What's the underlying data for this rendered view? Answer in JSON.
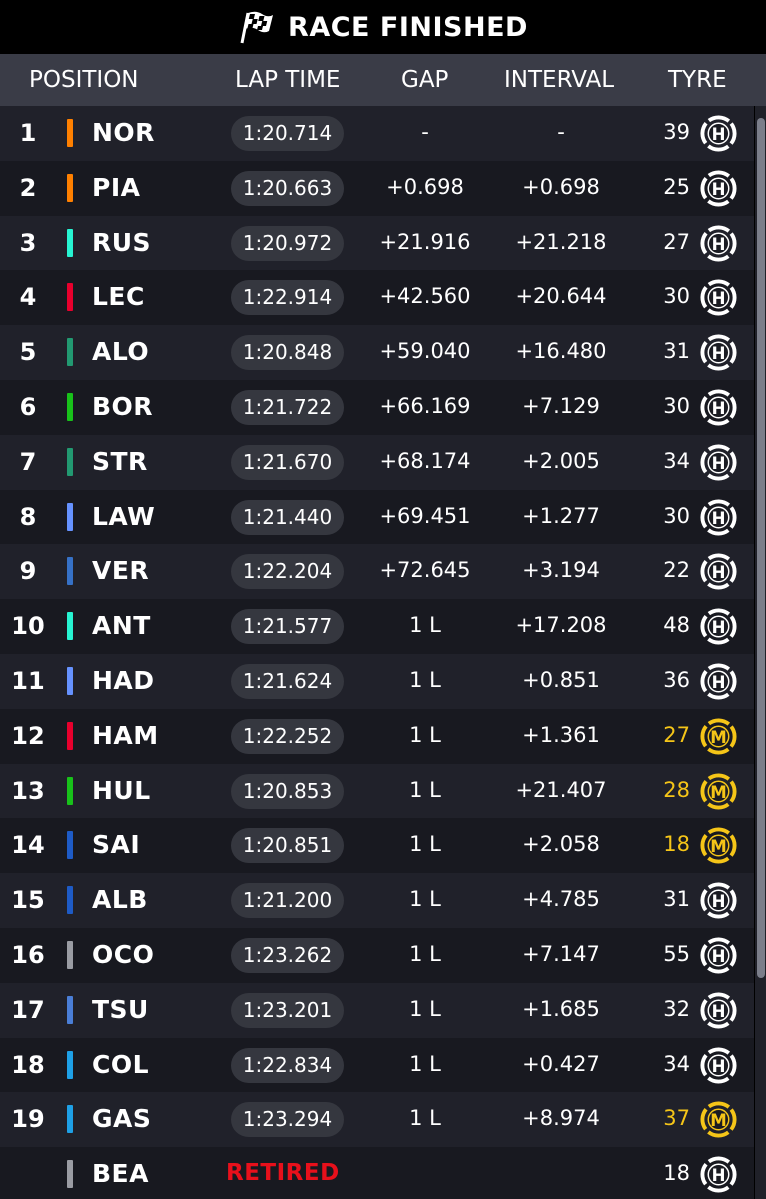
{
  "header": {
    "title": "RACE FINISHED"
  },
  "columns": {
    "position": "POSITION",
    "lap_time": "LAP TIME",
    "gap": "GAP",
    "interval": "INTERVAL",
    "tyre": "TYRE"
  },
  "rows": [
    {
      "pos": "1",
      "driver": "NOR",
      "team_color": "#ff8000",
      "lap_time": "1:20.714",
      "gap": "-",
      "interval": "-",
      "laps": "39",
      "tyre": "H",
      "tyre_color": "#ffffff"
    },
    {
      "pos": "2",
      "driver": "PIA",
      "team_color": "#ff8000",
      "lap_time": "1:20.663",
      "gap": "+0.698",
      "interval": "+0.698",
      "laps": "25",
      "tyre": "H",
      "tyre_color": "#ffffff"
    },
    {
      "pos": "3",
      "driver": "RUS",
      "team_color": "#27f4d2",
      "lap_time": "1:20.972",
      "gap": "+21.916",
      "interval": "+21.218",
      "laps": "27",
      "tyre": "H",
      "tyre_color": "#ffffff"
    },
    {
      "pos": "4",
      "driver": "LEC",
      "team_color": "#e8002d",
      "lap_time": "1:22.914",
      "gap": "+42.560",
      "interval": "+20.644",
      "laps": "30",
      "tyre": "H",
      "tyre_color": "#ffffff"
    },
    {
      "pos": "5",
      "driver": "ALO",
      "team_color": "#229971",
      "lap_time": "1:20.848",
      "gap": "+59.040",
      "interval": "+16.480",
      "laps": "31",
      "tyre": "H",
      "tyre_color": "#ffffff"
    },
    {
      "pos": "6",
      "driver": "BOR",
      "team_color": "#18c11a",
      "lap_time": "1:21.722",
      "gap": "+66.169",
      "interval": "+7.129",
      "laps": "30",
      "tyre": "H",
      "tyre_color": "#ffffff"
    },
    {
      "pos": "7",
      "driver": "STR",
      "team_color": "#229971",
      "lap_time": "1:21.670",
      "gap": "+68.174",
      "interval": "+2.005",
      "laps": "34",
      "tyre": "H",
      "tyre_color": "#ffffff"
    },
    {
      "pos": "8",
      "driver": "LAW",
      "team_color": "#6692ff",
      "lap_time": "1:21.440",
      "gap": "+69.451",
      "interval": "+1.277",
      "laps": "30",
      "tyre": "H",
      "tyre_color": "#ffffff"
    },
    {
      "pos": "9",
      "driver": "VER",
      "team_color": "#3671c6",
      "lap_time": "1:22.204",
      "gap": "+72.645",
      "interval": "+3.194",
      "laps": "22",
      "tyre": "H",
      "tyre_color": "#ffffff"
    },
    {
      "pos": "10",
      "driver": "ANT",
      "team_color": "#27f4d2",
      "lap_time": "1:21.577",
      "gap": "1 L",
      "interval": "+17.208",
      "laps": "48",
      "tyre": "H",
      "tyre_color": "#ffffff"
    },
    {
      "pos": "11",
      "driver": "HAD",
      "team_color": "#6692ff",
      "lap_time": "1:21.624",
      "gap": "1 L",
      "interval": "+0.851",
      "laps": "36",
      "tyre": "H",
      "tyre_color": "#ffffff"
    },
    {
      "pos": "12",
      "driver": "HAM",
      "team_color": "#e8002d",
      "lap_time": "1:22.252",
      "gap": "1 L",
      "interval": "+1.361",
      "laps": "27",
      "tyre": "M",
      "tyre_color": "#f5c518"
    },
    {
      "pos": "13",
      "driver": "HUL",
      "team_color": "#18c11a",
      "lap_time": "1:20.853",
      "gap": "1 L",
      "interval": "+21.407",
      "laps": "28",
      "tyre": "M",
      "tyre_color": "#f5c518"
    },
    {
      "pos": "14",
      "driver": "SAI",
      "team_color": "#1e5bc6",
      "lap_time": "1:20.851",
      "gap": "1 L",
      "interval": "+2.058",
      "laps": "18",
      "tyre": "M",
      "tyre_color": "#f5c518"
    },
    {
      "pos": "15",
      "driver": "ALB",
      "team_color": "#1e5bc6",
      "lap_time": "1:21.200",
      "gap": "1 L",
      "interval": "+4.785",
      "laps": "31",
      "tyre": "H",
      "tyre_color": "#ffffff"
    },
    {
      "pos": "16",
      "driver": "OCO",
      "team_color": "#9a9ca3",
      "lap_time": "1:23.262",
      "gap": "1 L",
      "interval": "+7.147",
      "laps": "55",
      "tyre": "H",
      "tyre_color": "#ffffff"
    },
    {
      "pos": "17",
      "driver": "TSU",
      "team_color": "#4a7ed6",
      "lap_time": "1:23.201",
      "gap": "1 L",
      "interval": "+1.685",
      "laps": "32",
      "tyre": "H",
      "tyre_color": "#ffffff"
    },
    {
      "pos": "18",
      "driver": "COL",
      "team_color": "#1ea0e6",
      "lap_time": "1:22.834",
      "gap": "1 L",
      "interval": "+0.427",
      "laps": "34",
      "tyre": "H",
      "tyre_color": "#ffffff"
    },
    {
      "pos": "19",
      "driver": "GAS",
      "team_color": "#1ea0e6",
      "lap_time": "1:23.294",
      "gap": "1 L",
      "interval": "+8.974",
      "laps": "37",
      "tyre": "M",
      "tyre_color": "#f5c518"
    },
    {
      "pos": "",
      "driver": "BEA",
      "team_color": "#9a9ca3",
      "status": "RETIRED",
      "lap_time": "",
      "gap": "",
      "interval": "",
      "laps": "18",
      "tyre": "H",
      "tyre_color": "#ffffff"
    }
  ],
  "colors": {
    "header_bg": "#3a3c47",
    "row_odd": "#20212a",
    "row_even": "#181920",
    "pill_bg": "#35373f",
    "retired": "#e8101b",
    "medium_tyre": "#f5c518"
  }
}
